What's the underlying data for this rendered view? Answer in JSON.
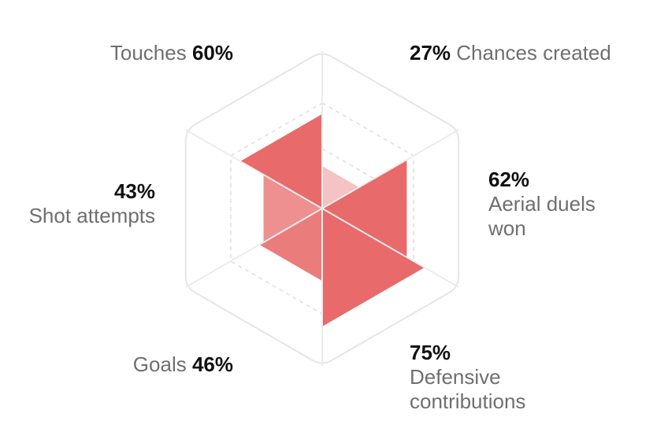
{
  "chart_data": {
    "type": "radar",
    "max": 100,
    "axes": [
      {
        "key": "chances",
        "name": "Chances created",
        "value": 27,
        "value_label": "27%"
      },
      {
        "key": "aerial",
        "name": "Aerial duels won",
        "name_lines": [
          "Aerial duels",
          "won"
        ],
        "value": 62,
        "value_label": "62%"
      },
      {
        "key": "defensive",
        "name": "Defensive contributions",
        "name_lines": [
          "Defensive",
          "contributions"
        ],
        "value": 75,
        "value_label": "75%"
      },
      {
        "key": "goals",
        "name": "Goals",
        "value": 46,
        "value_label": "46%"
      },
      {
        "key": "shots",
        "name": "Shot attempts",
        "value": 43,
        "value_label": "43%"
      },
      {
        "key": "touches",
        "name": "Touches",
        "value": 60,
        "value_label": "60%"
      }
    ],
    "colors": {
      "fill": "#e96a6a",
      "fill_light": "#f5c3c3",
      "grid": "#e6e6e6",
      "grid_dashed": "#dedede",
      "label": "#6f6f6f",
      "value": "#111111"
    }
  }
}
